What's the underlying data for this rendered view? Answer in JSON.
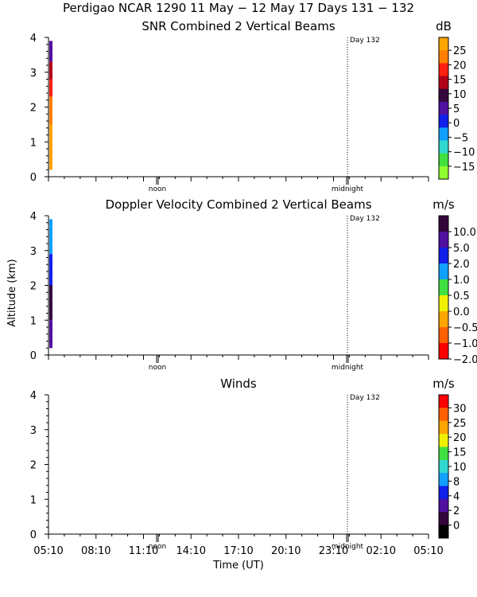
{
  "title": "Perdigao NCAR 1290  11 May − 12 May 17 Days 131 − 132",
  "x_axis": {
    "label": "Time (UT)",
    "ticks": [
      "05:10",
      "08:10",
      "11:10",
      "14:10",
      "17:10",
      "20:10",
      "23:10",
      "02:10",
      "05:10"
    ],
    "noon_label": "noon",
    "midnight_label": "midnight",
    "day_label": "Day 132"
  },
  "y_axis_label": "Altitude (km)",
  "chart_data": [
    {
      "type": "heatmap",
      "title": "SNR Combined 2 Vertical Beams",
      "unit": "dB",
      "ylim": [
        0,
        4
      ],
      "y_ticks": [
        "0",
        "1",
        "2",
        "3",
        "4"
      ],
      "colorbar": {
        "labels": [
          "25",
          "20",
          "15",
          "10",
          "5",
          "0",
          "−5",
          "−10",
          "−15"
        ],
        "colors": [
          "#ffa500",
          "#ff8000",
          "#ff2010",
          "#b00018",
          "#34063c",
          "#5010a0",
          "#1020e8",
          "#10a0ff",
          "#30d8d0",
          "#40e040",
          "#90ff30"
        ]
      },
      "data_strip": {
        "time": "05:10",
        "segments": [
          {
            "alt_from": 0.2,
            "alt_to": 1.5,
            "color": "#ffa500"
          },
          {
            "alt_from": 1.5,
            "alt_to": 2.3,
            "color": "#ff8000"
          },
          {
            "alt_from": 2.3,
            "alt_to": 2.8,
            "color": "#ff2010"
          },
          {
            "alt_from": 2.8,
            "alt_to": 3.3,
            "color": "#b00018"
          },
          {
            "alt_from": 3.3,
            "alt_to": 3.9,
            "color": "#5010a0"
          }
        ]
      }
    },
    {
      "type": "heatmap",
      "title": "Doppler Velocity Combined 2 Vertical Beams",
      "unit": "m/s",
      "ylim": [
        0,
        4
      ],
      "y_ticks": [
        "0",
        "1",
        "2",
        "3",
        "4"
      ],
      "colorbar": {
        "labels": [
          "10.0",
          "5.0",
          "2.0",
          "1.0",
          "0.5",
          "0.0",
          "−0.5",
          "−1.0",
          "−2.0"
        ],
        "colors": [
          "#34063c",
          "#5010a0",
          "#1020e8",
          "#10a0ff",
          "#40e040",
          "#f0f000",
          "#ffa500",
          "#ff6000",
          "#ff0000"
        ]
      },
      "data_strip": {
        "time": "05:10",
        "segments": [
          {
            "alt_from": 0.2,
            "alt_to": 1.0,
            "color": "#5010a0"
          },
          {
            "alt_from": 1.0,
            "alt_to": 2.0,
            "color": "#34063c"
          },
          {
            "alt_from": 2.0,
            "alt_to": 2.9,
            "color": "#1020e8"
          },
          {
            "alt_from": 2.9,
            "alt_to": 3.9,
            "color": "#10a0ff"
          }
        ]
      }
    },
    {
      "type": "heatmap",
      "title": "Winds",
      "unit": "m/s",
      "ylim": [
        0,
        4
      ],
      "y_ticks": [
        "0",
        "1",
        "2",
        "3",
        "4"
      ],
      "colorbar": {
        "labels": [
          "30",
          "25",
          "20",
          "15",
          "10",
          "8",
          "4",
          "2",
          "0"
        ],
        "colors": [
          "#ff0000",
          "#ff6000",
          "#ffa500",
          "#f0f000",
          "#40e040",
          "#30d8d0",
          "#10a0ff",
          "#1020e8",
          "#5010a0",
          "#34063c",
          "#000000"
        ]
      },
      "data_strip": null
    }
  ]
}
